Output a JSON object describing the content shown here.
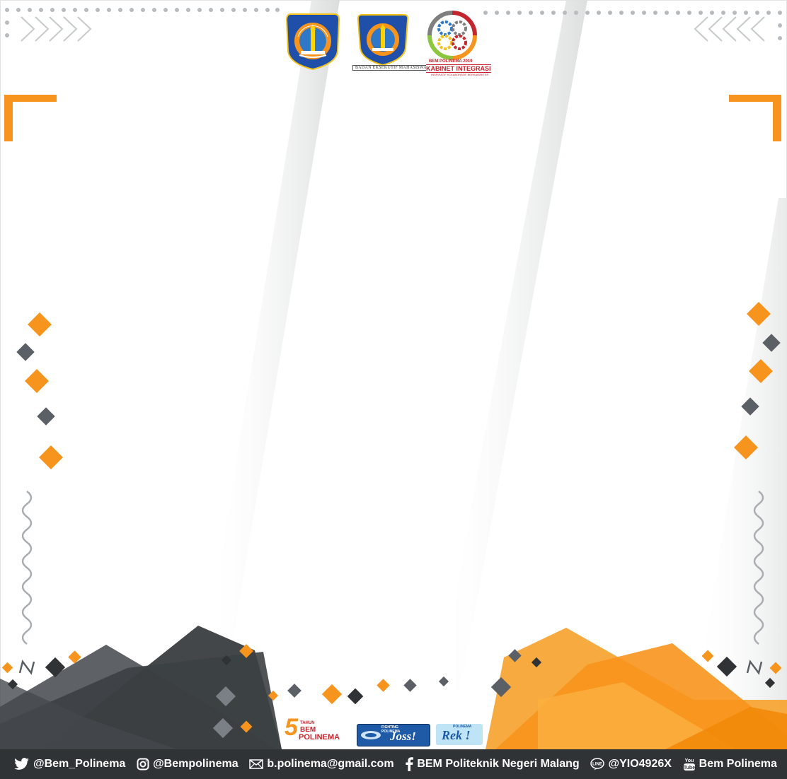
{
  "logos": {
    "polinema_ring_text": "POLITEKNIK NEGERI MALANG",
    "bem_ring_text": "POLITEKNIK NEGERI MALANG",
    "bem_caption": "BADAN EKSEKUTIF MAHASISWA",
    "kabinet_top": "BEM POLINEMA 2019",
    "kabinet_main": "KABINET INTEGRASI",
    "kabinet_sub": "INSPIRATIF KOLABORATIF BERKARAKTER"
  },
  "sponsors": {
    "bem_years": "5",
    "bem_tahun": "TAHUN",
    "bem_name_1": "BEM",
    "bem_name_2": "POLINEMA",
    "joss_small": "FIGHTING",
    "joss_small_2": "POLINEMA",
    "joss_main": "Joss!",
    "rek_small": "POLINEMA",
    "rek_main": "Rek !"
  },
  "footer": {
    "items": [
      {
        "icon": "twitter-icon",
        "label": "@Bem_Polinema"
      },
      {
        "icon": "instagram-icon",
        "label": "@Bempolinema"
      },
      {
        "icon": "mail-icon",
        "label": "b.polinema@gmail.com"
      },
      {
        "icon": "facebook-icon",
        "label": "BEM Politeknik Negeri Malang"
      },
      {
        "icon": "line-icon",
        "label": "@YIO4926X"
      },
      {
        "icon": "youtube-icon",
        "label": "Bem Polinema"
      }
    ]
  },
  "colors": {
    "orange": "#f7941d",
    "dark": "#3a3d40",
    "grey_diamond": "#5b6066",
    "footer": "#2f3336",
    "chevron": "#c7cacc"
  }
}
